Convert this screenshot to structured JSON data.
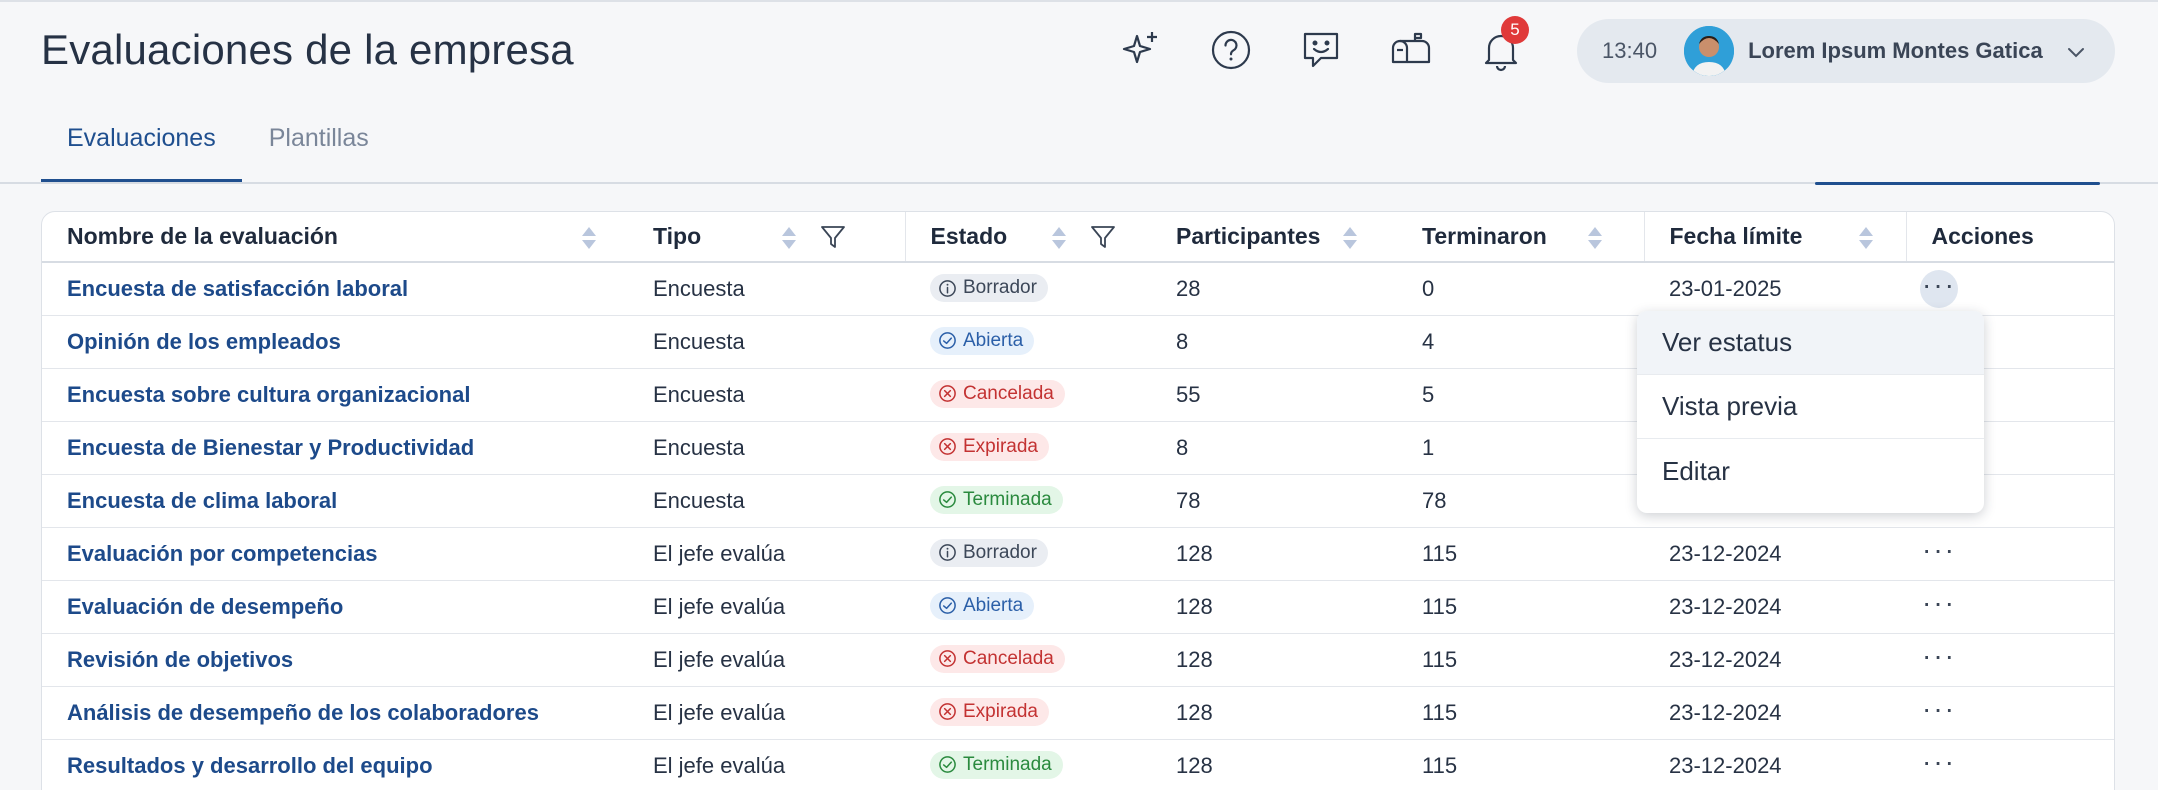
{
  "header": {
    "title": "Evaluaciones de la empresa",
    "notification_count": "5",
    "time": "13:40",
    "user_name": "Lorem Ipsum Montes Gatica"
  },
  "tabs": [
    {
      "label": "Evaluaciones",
      "active": true
    },
    {
      "label": "Plantillas",
      "active": false
    }
  ],
  "table": {
    "columns": [
      "Nombre de la evaluación",
      "Tipo",
      "Estado",
      "Participantes",
      "Terminaron",
      "Fecha límite",
      "Acciones"
    ],
    "rows": [
      {
        "name": "Encuesta de satisfacción laboral",
        "tipo": "Encuesta",
        "estado": "Borrador",
        "participantes": "28",
        "terminaron": "0",
        "fecha": "23-01-2025"
      },
      {
        "name": "Opinión de los empleados",
        "tipo": "Encuesta",
        "estado": "Abierta",
        "participantes": "8",
        "terminaron": "4",
        "fecha": ""
      },
      {
        "name": "Encuesta sobre cultura organizacional",
        "tipo": "Encuesta",
        "estado": "Cancelada",
        "participantes": "55",
        "terminaron": "5",
        "fecha": ""
      },
      {
        "name": "Encuesta de Bienestar y Productividad",
        "tipo": "Encuesta",
        "estado": "Expirada",
        "participantes": "8",
        "terminaron": "1",
        "fecha": ""
      },
      {
        "name": "Encuesta de clima laboral",
        "tipo": "Encuesta",
        "estado": "Terminada",
        "participantes": "78",
        "terminaron": "78",
        "fecha": ""
      },
      {
        "name": "Evaluación por competencias",
        "tipo": "El jefe evalúa",
        "estado": "Borrador",
        "participantes": "128",
        "terminaron": "115",
        "fecha": "23-12-2024"
      },
      {
        "name": "Evaluación de desempeño",
        "tipo": "El jefe evalúa",
        "estado": "Abierta",
        "participantes": "128",
        "terminaron": "115",
        "fecha": "23-12-2024"
      },
      {
        "name": "Revisión de objetivos",
        "tipo": "El jefe evalúa",
        "estado": "Cancelada",
        "participantes": "128",
        "terminaron": "115",
        "fecha": "23-12-2024"
      },
      {
        "name": "Análisis de desempeño de los colaboradores",
        "tipo": "El jefe evalúa",
        "estado": "Expirada",
        "participantes": "128",
        "terminaron": "115",
        "fecha": "23-12-2024"
      },
      {
        "name": "Resultados y desarrollo del equipo",
        "tipo": "El jefe evalúa",
        "estado": "Terminada",
        "participantes": "128",
        "terminaron": "115",
        "fecha": "23-12-2024"
      }
    ],
    "actions_label": "···"
  },
  "menu": {
    "items": [
      "Ver estatus",
      "Vista previa",
      "Editar"
    ]
  },
  "icons": {
    "header": [
      "sparkles-icon",
      "help-circle-icon",
      "feedback-chat-icon",
      "mailbox-icon",
      "bell-icon"
    ],
    "status": {
      "Borrador": "info-icon",
      "Abierta": "check-circle-icon",
      "Cancelada": "x-circle-icon",
      "Expirada": "x-circle-icon",
      "Terminada": "check-circle-icon"
    }
  },
  "colors": {
    "link": "#1d4a8a",
    "accent": "#1f4f8f",
    "badge_red": "#e03a3a"
  }
}
